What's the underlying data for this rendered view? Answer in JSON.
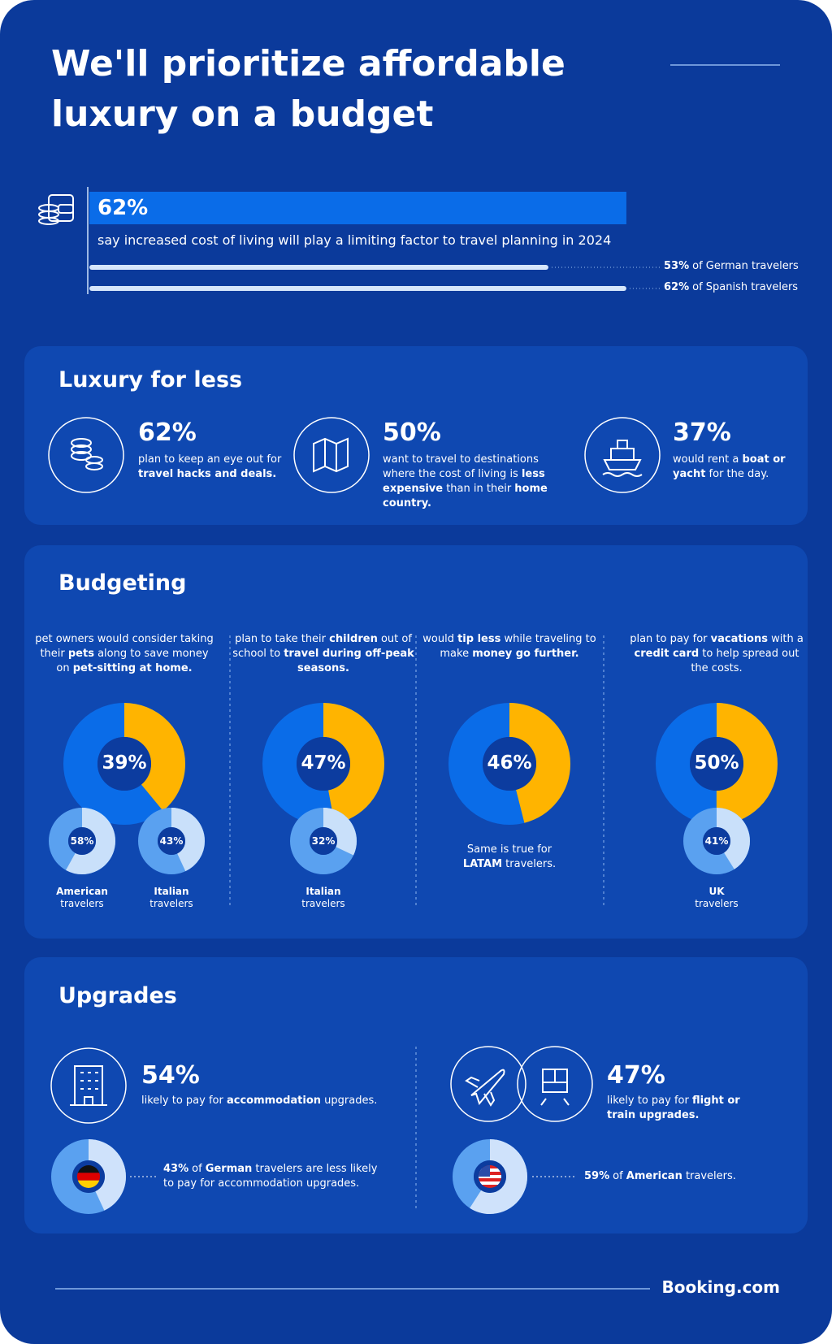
{
  "title": "We'll prioritize affordable luxury on a budget",
  "headline": {
    "stat": {
      "value": 62,
      "label": "62%"
    },
    "text": "say increased cost of living will play a limiting factor to travel planning in 2024",
    "comparisons": [
      {
        "stat": {
          "value": 53,
          "label": "53%"
        },
        "parts": [
          {
            "text": "of German travelers"
          }
        ]
      },
      {
        "stat": {
          "value": 62,
          "label": "62%"
        },
        "parts": [
          {
            "text": "of Spanish travelers"
          }
        ]
      }
    ]
  },
  "luxury": {
    "title": "Luxury for less",
    "items": [
      {
        "stat": {
          "value": 62,
          "label": "62%"
        },
        "parts": [
          {
            "text": "plan to keep an eye out for "
          },
          {
            "text": "travel hacks and deals.",
            "bold": true
          }
        ]
      },
      {
        "stat": {
          "value": 50,
          "label": "50%"
        },
        "parts": [
          {
            "text": "want to travel to destinations where the cost of living is "
          },
          {
            "text": "less expensive",
            "bold": true
          },
          {
            "text": " than in their "
          },
          {
            "text": "home country.",
            "bold": true
          }
        ]
      },
      {
        "stat": {
          "value": 37,
          "label": "37%"
        },
        "parts": [
          {
            "text": "would rent a "
          },
          {
            "text": "boat or yacht",
            "bold": true
          },
          {
            "text": " for the day."
          }
        ]
      }
    ]
  },
  "budgeting": {
    "title": "Budgeting",
    "columns": [
      {
        "parts": [
          {
            "text": "pet owners would consider taking their "
          },
          {
            "text": "pets",
            "bold": true
          },
          {
            "text": " along to save money on "
          },
          {
            "text": "pet-sitting at home.",
            "bold": true
          }
        ],
        "stat": {
          "value": 39,
          "label": "39%"
        },
        "subgroups": [
          {
            "stat": {
              "value": 58,
              "label": "58%"
            },
            "name": "American",
            "text": "travelers"
          },
          {
            "stat": {
              "value": 43,
              "label": "43%"
            },
            "name": "Italian",
            "text": "travelers"
          }
        ]
      },
      {
        "parts": [
          {
            "text": "plan to take their "
          },
          {
            "text": "children",
            "bold": true
          },
          {
            "text": " out of school to "
          },
          {
            "text": "travel during off-peak seasons.",
            "bold": true
          }
        ],
        "stat": {
          "value": 47,
          "label": "47%"
        },
        "subgroups": [
          {
            "stat": {
              "value": 32,
              "label": "32%"
            },
            "name": "Italian",
            "text": "travelers"
          }
        ]
      },
      {
        "parts": [
          {
            "text": "would "
          },
          {
            "text": "tip less",
            "bold": true
          },
          {
            "text": " while traveling to make "
          },
          {
            "text": "money go further.",
            "bold": true
          }
        ],
        "stat": {
          "value": 46,
          "label": "46%"
        },
        "note": [
          {
            "text": "Same is true for "
          },
          {
            "text": "LATAM",
            "bold": true
          },
          {
            "text": " travelers."
          }
        ]
      },
      {
        "parts": [
          {
            "text": "plan to pay for "
          },
          {
            "text": "vacations",
            "bold": true
          },
          {
            "text": " with a "
          },
          {
            "text": "credit card",
            "bold": true
          },
          {
            "text": " to help spread out the costs."
          }
        ],
        "stat": {
          "value": 50,
          "label": "50%"
        },
        "subgroups": [
          {
            "stat": {
              "value": 41,
              "label": "41%"
            },
            "name": "UK",
            "text": "travelers"
          }
        ]
      }
    ]
  },
  "upgrades": {
    "title": "Upgrades",
    "items": [
      {
        "stat": {
          "value": 54,
          "label": "54%"
        },
        "parts": [
          {
            "text": "likely to pay for "
          },
          {
            "text": "accommodation",
            "bold": true
          },
          {
            "text": " upgrades."
          }
        ],
        "comparison": {
          "stat": {
            "value": 43,
            "label": "43%"
          },
          "parts": [
            {
              "text": "of "
            },
            {
              "text": "German",
              "bold": true
            },
            {
              "text": " travelers are less likely to pay for accommodation upgrades."
            }
          ]
        }
      },
      {
        "stat": {
          "value": 47,
          "label": "47%"
        },
        "parts": [
          {
            "text": "likely to pay for "
          },
          {
            "text": "flight or train upgrades.",
            "bold": true
          }
        ],
        "comparison": {
          "stat": {
            "value": 59,
            "label": "59%"
          },
          "parts": [
            {
              "text": "of "
            },
            {
              "text": "American",
              "bold": true
            },
            {
              "text": " travelers."
            }
          ]
        }
      }
    ]
  },
  "brand": "Booking.com"
}
